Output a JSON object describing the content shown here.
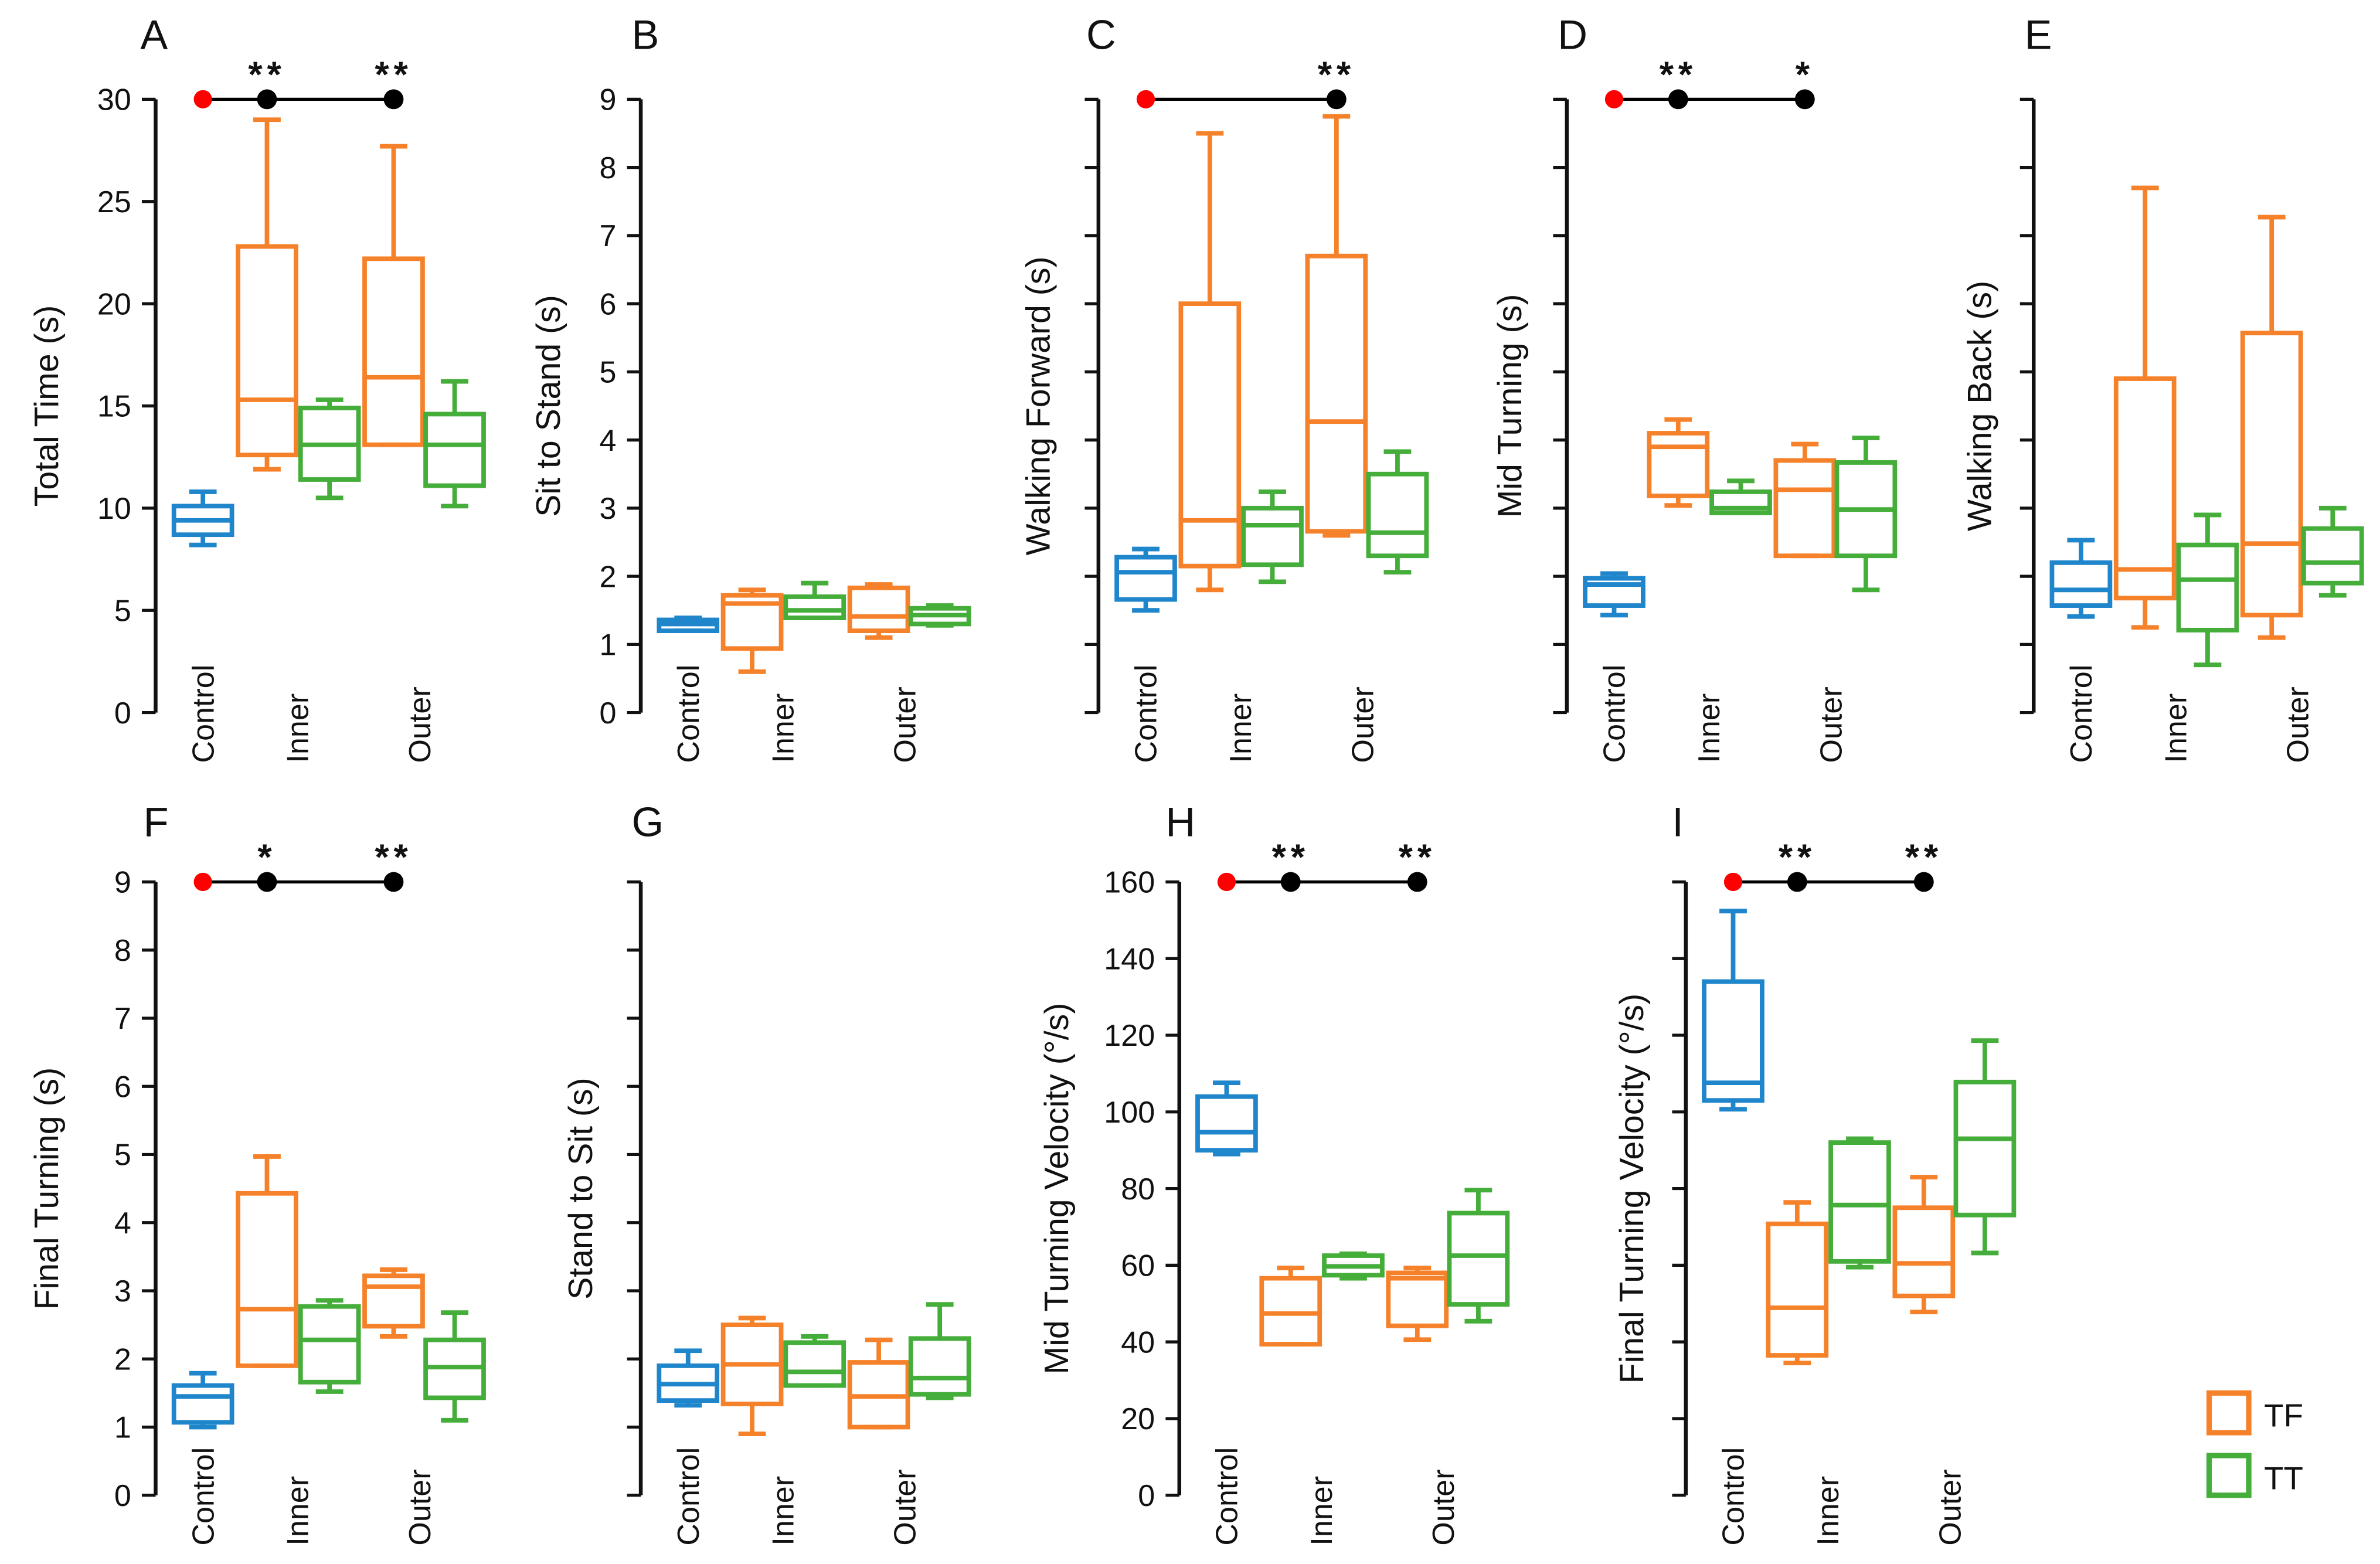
{
  "colors": {
    "control": "#1f86cc",
    "TF": "#f5822a",
    "TT": "#45ad3a",
    "ref_dot": "#ff0000",
    "sig_dot": "#000000",
    "axis": "#111111"
  },
  "legend": [
    {
      "label": "TF",
      "color": "#f5822a"
    },
    {
      "label": "TT",
      "color": "#45ad3a"
    }
  ],
  "chart_data": [
    {
      "type": "box",
      "panel": "A",
      "ylabel": "Total Time (s)",
      "ylim": [
        0,
        30
      ],
      "yticks": [
        0,
        5,
        10,
        15,
        20,
        25,
        30
      ],
      "ytick_labels": [
        "0",
        "5",
        "10",
        "15",
        "20",
        "25",
        "30"
      ],
      "categories": [
        "Control",
        "Inner",
        "Outer"
      ],
      "boxes": [
        {
          "group": "Control",
          "series": "Control",
          "min": 8.2,
          "q1": 8.7,
          "median": 9.4,
          "q3": 10.1,
          "max": 10.8
        },
        {
          "group": "Inner",
          "series": "TF",
          "min": 11.9,
          "q1": 12.6,
          "median": 15.3,
          "q3": 22.8,
          "max": 29.0
        },
        {
          "group": "Inner",
          "series": "TT",
          "min": 10.5,
          "q1": 11.4,
          "median": 13.1,
          "q3": 14.9,
          "max": 15.3
        },
        {
          "group": "Outer",
          "series": "TF",
          "min": 13.1,
          "q1": 13.1,
          "median": 16.4,
          "q3": 22.2,
          "max": 27.7
        },
        {
          "group": "Outer",
          "series": "TT",
          "min": 10.1,
          "q1": 11.1,
          "median": 13.1,
          "q3": 14.6,
          "max": 16.2
        }
      ],
      "significance": {
        "Inner": "**",
        "Outer": "**"
      }
    },
    {
      "type": "box",
      "panel": "B",
      "ylabel": "Sit to Stand (s)",
      "ylim": [
        0,
        9
      ],
      "yticks": [
        0,
        1,
        2,
        3,
        4,
        5,
        6,
        7,
        8,
        9
      ],
      "ytick_labels": [
        "0",
        "1",
        "2",
        "3",
        "4",
        "5",
        "6",
        "7",
        "8",
        "9"
      ],
      "categories": [
        "Control",
        "Inner",
        "Outer"
      ],
      "boxes": [
        {
          "group": "Control",
          "series": "Control",
          "min": 1.2,
          "q1": 1.2,
          "median": 1.3,
          "q3": 1.36,
          "max": 1.39
        },
        {
          "group": "Inner",
          "series": "TF",
          "min": 0.6,
          "q1": 0.94,
          "median": 1.6,
          "q3": 1.72,
          "max": 1.8
        },
        {
          "group": "Inner",
          "series": "TT",
          "min": 1.39,
          "q1": 1.39,
          "median": 1.5,
          "q3": 1.7,
          "max": 1.9
        },
        {
          "group": "Outer",
          "series": "TF",
          "min": 1.1,
          "q1": 1.2,
          "median": 1.41,
          "q3": 1.83,
          "max": 1.88
        },
        {
          "group": "Outer",
          "series": "TT",
          "min": 1.28,
          "q1": 1.3,
          "median": 1.43,
          "q3": 1.53,
          "max": 1.57
        }
      ],
      "significance": {}
    },
    {
      "type": "box",
      "panel": "C",
      "ylabel": "Walking Forward (s)",
      "ylim": [
        0,
        9
      ],
      "yticks": [
        0,
        1,
        2,
        3,
        4,
        5,
        6,
        7,
        8,
        9
      ],
      "ytick_labels": [],
      "categories": [
        "Control",
        "Inner",
        "Outer"
      ],
      "boxes": [
        {
          "group": "Control",
          "series": "Control",
          "min": 1.5,
          "q1": 1.66,
          "median": 2.06,
          "q3": 2.28,
          "max": 2.4
        },
        {
          "group": "Inner",
          "series": "TF",
          "min": 1.8,
          "q1": 2.15,
          "median": 2.82,
          "q3": 6.0,
          "max": 8.5
        },
        {
          "group": "Inner",
          "series": "TT",
          "min": 1.92,
          "q1": 2.17,
          "median": 2.75,
          "q3": 3.0,
          "max": 3.24
        },
        {
          "group": "Outer",
          "series": "TF",
          "min": 2.6,
          "q1": 2.66,
          "median": 4.27,
          "q3": 6.7,
          "max": 8.75
        },
        {
          "group": "Outer",
          "series": "TT",
          "min": 2.06,
          "q1": 2.3,
          "median": 2.64,
          "q3": 3.5,
          "max": 3.83
        }
      ],
      "significance": {
        "Outer": "**"
      }
    },
    {
      "type": "box",
      "panel": "D",
      "ylabel": "Mid Turning (s)",
      "ylim": [
        0,
        9
      ],
      "yticks": [
        0,
        1,
        2,
        3,
        4,
        5,
        6,
        7,
        8,
        9
      ],
      "ytick_labels": [],
      "categories": [
        "Control",
        "Inner",
        "Outer"
      ],
      "boxes": [
        {
          "group": "Control",
          "series": "Control",
          "min": 1.43,
          "q1": 1.57,
          "median": 1.88,
          "q3": 1.97,
          "max": 2.04
        },
        {
          "group": "Inner",
          "series": "TF",
          "min": 3.04,
          "q1": 3.18,
          "median": 3.9,
          "q3": 4.1,
          "max": 4.3
        },
        {
          "group": "Inner",
          "series": "TT",
          "min": 2.93,
          "q1": 2.93,
          "median": 3.0,
          "q3": 3.24,
          "max": 3.4
        },
        {
          "group": "Outer",
          "series": "TF",
          "min": 2.3,
          "q1": 2.3,
          "median": 3.27,
          "q3": 3.7,
          "max": 3.94
        },
        {
          "group": "Outer",
          "series": "TT",
          "min": 1.8,
          "q1": 2.3,
          "median": 2.98,
          "q3": 3.67,
          "max": 4.03
        }
      ],
      "significance": {
        "Inner": "**",
        "Outer": "*"
      }
    },
    {
      "type": "box",
      "panel": "E",
      "ylabel": "Walking Back (s)",
      "ylim": [
        0,
        9
      ],
      "yticks": [
        0,
        1,
        2,
        3,
        4,
        5,
        6,
        7,
        8,
        9
      ],
      "ytick_labels": [],
      "categories": [
        "Control",
        "Inner",
        "Outer"
      ],
      "boxes": [
        {
          "group": "Control",
          "series": "Control",
          "min": 1.41,
          "q1": 1.57,
          "median": 1.8,
          "q3": 2.2,
          "max": 2.53
        },
        {
          "group": "Inner",
          "series": "TF",
          "min": 1.25,
          "q1": 1.68,
          "median": 2.1,
          "q3": 4.9,
          "max": 7.7
        },
        {
          "group": "Inner",
          "series": "TT",
          "min": 0.7,
          "q1": 1.21,
          "median": 1.95,
          "q3": 2.46,
          "max": 2.9
        },
        {
          "group": "Outer",
          "series": "TF",
          "min": 1.1,
          "q1": 1.43,
          "median": 2.48,
          "q3": 5.57,
          "max": 7.27
        },
        {
          "group": "Outer",
          "series": "TT",
          "min": 1.72,
          "q1": 1.9,
          "median": 2.2,
          "q3": 2.7,
          "max": 3.0
        }
      ],
      "significance": {}
    },
    {
      "type": "box",
      "panel": "F",
      "ylabel": "Final Turning (s)",
      "ylim": [
        0,
        9
      ],
      "yticks": [
        0,
        1,
        2,
        3,
        4,
        5,
        6,
        7,
        8,
        9
      ],
      "ytick_labels": [
        "0",
        "1",
        "2",
        "3",
        "4",
        "5",
        "6",
        "7",
        "8",
        "9"
      ],
      "categories": [
        "Control",
        "Inner",
        "Outer"
      ],
      "boxes": [
        {
          "group": "Control",
          "series": "Control",
          "min": 1.0,
          "q1": 1.07,
          "median": 1.45,
          "q3": 1.61,
          "max": 1.79
        },
        {
          "group": "Inner",
          "series": "TF",
          "min": 1.9,
          "q1": 1.9,
          "median": 2.73,
          "q3": 4.43,
          "max": 4.97
        },
        {
          "group": "Inner",
          "series": "TT",
          "min": 1.52,
          "q1": 1.66,
          "median": 2.28,
          "q3": 2.77,
          "max": 2.86
        },
        {
          "group": "Outer",
          "series": "TF",
          "min": 2.33,
          "q1": 2.48,
          "median": 3.06,
          "q3": 3.22,
          "max": 3.31
        },
        {
          "group": "Outer",
          "series": "TT",
          "min": 1.1,
          "q1": 1.43,
          "median": 1.88,
          "q3": 2.28,
          "max": 2.68
        }
      ],
      "significance": {
        "Inner": "*",
        "Outer": "**"
      }
    },
    {
      "type": "box",
      "panel": "G",
      "ylabel": "Stand to Sit (s)",
      "ylim": [
        0,
        9
      ],
      "yticks": [
        0,
        1,
        2,
        3,
        4,
        5,
        6,
        7,
        8,
        9
      ],
      "ytick_labels": [],
      "categories": [
        "Control",
        "Inner",
        "Outer"
      ],
      "boxes": [
        {
          "group": "Control",
          "series": "Control",
          "min": 1.32,
          "q1": 1.39,
          "median": 1.63,
          "q3": 1.9,
          "max": 2.12
        },
        {
          "group": "Inner",
          "series": "TF",
          "min": 0.9,
          "q1": 1.34,
          "median": 1.92,
          "q3": 2.5,
          "max": 2.6
        },
        {
          "group": "Inner",
          "series": "TT",
          "min": 1.61,
          "q1": 1.61,
          "median": 1.81,
          "q3": 2.24,
          "max": 2.33
        },
        {
          "group": "Outer",
          "series": "TF",
          "min": 1.0,
          "q1": 1.0,
          "median": 1.45,
          "q3": 1.95,
          "max": 2.28
        },
        {
          "group": "Outer",
          "series": "TT",
          "min": 1.43,
          "q1": 1.48,
          "median": 1.72,
          "q3": 2.3,
          "max": 2.8
        }
      ],
      "significance": {}
    },
    {
      "type": "box",
      "panel": "H",
      "ylabel": "Mid Turning Velocity (°/s)",
      "ylim": [
        0,
        160
      ],
      "yticks": [
        0,
        20,
        40,
        60,
        80,
        100,
        120,
        140,
        160
      ],
      "ytick_labels": [
        "0",
        "20",
        "40",
        "60",
        "80",
        "100",
        "120",
        "140",
        "160"
      ],
      "categories": [
        "Control",
        "Inner",
        "Outer"
      ],
      "boxes": [
        {
          "group": "Control",
          "series": "Control",
          "min": 89,
          "q1": 90,
          "median": 94.7,
          "q3": 104,
          "max": 107.6
        },
        {
          "group": "Inner",
          "series": "TF",
          "min": 39.4,
          "q1": 39.4,
          "median": 47.4,
          "q3": 56.6,
          "max": 59.3
        },
        {
          "group": "Inner",
          "series": "TT",
          "min": 56.6,
          "q1": 57.4,
          "median": 59.7,
          "q3": 62.5,
          "max": 63
        },
        {
          "group": "Outer",
          "series": "TF",
          "min": 40.6,
          "q1": 44.2,
          "median": 56.6,
          "q3": 58,
          "max": 59.3
        },
        {
          "group": "Outer",
          "series": "TT",
          "min": 45.4,
          "q1": 49.8,
          "median": 62.5,
          "q3": 73.6,
          "max": 79.6
        }
      ],
      "significance": {
        "Inner": "**",
        "Outer": "**"
      }
    },
    {
      "type": "box",
      "panel": "I",
      "ylabel": "Final  Turning Velocity (°/s)",
      "ylim": [
        0,
        160
      ],
      "yticks": [
        0,
        20,
        40,
        60,
        80,
        100,
        120,
        140,
        160
      ],
      "ytick_labels": [],
      "categories": [
        "Control",
        "Inner",
        "Outer"
      ],
      "boxes": [
        {
          "group": "Control",
          "series": "Control",
          "min": 100.7,
          "q1": 103,
          "median": 107.6,
          "q3": 134,
          "max": 152.4
        },
        {
          "group": "Inner",
          "series": "TF",
          "min": 34.5,
          "q1": 36.5,
          "median": 48.9,
          "q3": 70.8,
          "max": 76.4
        },
        {
          "group": "Inner",
          "series": "TT",
          "min": 59.5,
          "q1": 61,
          "median": 75.7,
          "q3": 92,
          "max": 93
        },
        {
          "group": "Outer",
          "series": "TF",
          "min": 47.8,
          "q1": 52,
          "median": 60.5,
          "q3": 75,
          "max": 83
        },
        {
          "group": "Outer",
          "series": "TT",
          "min": 63.2,
          "q1": 73.1,
          "median": 93,
          "q3": 107.8,
          "max": 118.6
        }
      ],
      "significance": {
        "Inner": "**",
        "Outer": "**"
      }
    }
  ]
}
